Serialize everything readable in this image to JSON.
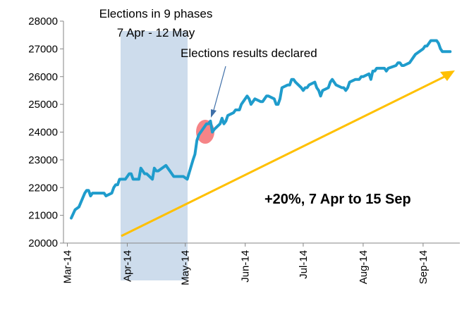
{
  "chart_data": {
    "type": "line",
    "title": "",
    "xlabel": "",
    "ylabel": "",
    "ylim": [
      20000,
      28000
    ],
    "y_ticks": [
      "20000",
      "21000",
      "22000",
      "23000",
      "24000",
      "25000",
      "26000",
      "27000",
      "28000"
    ],
    "x_ticks": [
      "Mar-14",
      "Apr-14",
      "May-14",
      "Jun-14",
      "Jul-14",
      "Aug-14",
      "Sep-14"
    ],
    "grid": false,
    "colors": {
      "series": "#1f9ccc",
      "trend": "#ffc000",
      "shade": "#cddcec",
      "highlight": "#f4777a",
      "pointer": "#3f6fa8"
    },
    "series": [
      {
        "x": [
          "2014-03-03",
          "2014-03-05",
          "2014-03-07",
          "2014-03-10",
          "2014-03-11",
          "2014-03-12",
          "2014-03-13",
          "2014-03-14",
          "2014-03-17",
          "2014-03-18",
          "2014-03-19",
          "2014-03-20",
          "2014-03-21",
          "2014-03-24",
          "2014-03-25",
          "2014-03-26",
          "2014-03-27",
          "2014-03-28",
          "2014-03-31",
          "2014-04-01",
          "2014-04-02",
          "2014-04-03",
          "2014-04-04",
          "2014-04-07",
          "2014-04-08",
          "2014-04-09",
          "2014-04-10",
          "2014-04-11",
          "2014-04-14",
          "2014-04-15",
          "2014-04-16",
          "2014-04-17",
          "2014-04-21",
          "2014-04-22",
          "2014-04-23",
          "2014-04-25",
          "2014-04-28",
          "2014-04-29",
          "2014-04-30",
          "2014-05-02",
          "2014-05-05",
          "2014-05-06",
          "2014-05-07",
          "2014-05-08",
          "2014-05-09",
          "2014-05-12",
          "2014-05-13",
          "2014-05-14",
          "2014-05-15",
          "2014-05-16",
          "2014-05-19",
          "2014-05-20",
          "2014-05-21",
          "2014-05-22",
          "2014-05-23",
          "2014-05-26",
          "2014-05-27",
          "2014-05-28",
          "2014-05-29",
          "2014-05-30",
          "2014-06-02",
          "2014-06-03",
          "2014-06-04",
          "2014-06-05",
          "2014-06-06",
          "2014-06-09",
          "2014-06-10",
          "2014-06-11",
          "2014-06-12",
          "2014-06-13",
          "2014-06-16",
          "2014-06-17",
          "2014-06-18",
          "2014-06-19",
          "2014-06-20",
          "2014-06-23",
          "2014-06-24",
          "2014-06-25",
          "2014-06-26",
          "2014-06-27",
          "2014-06-30",
          "2014-07-01",
          "2014-07-02",
          "2014-07-03",
          "2014-07-04",
          "2014-07-07",
          "2014-07-08",
          "2014-07-09",
          "2014-07-10",
          "2014-07-11",
          "2014-07-14",
          "2014-07-15",
          "2014-07-16",
          "2014-07-17",
          "2014-07-18",
          "2014-07-21",
          "2014-07-22",
          "2014-07-23",
          "2014-07-24",
          "2014-07-25",
          "2014-07-28",
          "2014-07-30",
          "2014-07-31",
          "2014-08-01",
          "2014-08-04",
          "2014-08-05",
          "2014-08-06",
          "2014-08-07",
          "2014-08-08",
          "2014-08-11",
          "2014-08-12",
          "2014-08-13",
          "2014-08-14",
          "2014-08-18",
          "2014-08-19",
          "2014-08-20",
          "2014-08-21",
          "2014-08-22",
          "2014-08-25",
          "2014-08-26",
          "2014-08-27",
          "2014-08-28",
          "2014-09-01",
          "2014-09-02",
          "2014-09-03",
          "2014-09-04",
          "2014-09-05",
          "2014-09-08",
          "2014-09-09",
          "2014-09-10",
          "2014-09-11",
          "2014-09-12",
          "2014-09-15"
        ],
        "values": [
          20900,
          21200,
          21300,
          21800,
          21900,
          21900,
          21700,
          21800,
          21800,
          21800,
          21800,
          21800,
          21700,
          21800,
          22000,
          22100,
          22100,
          22300,
          22300,
          22400,
          22500,
          22500,
          22300,
          22300,
          22700,
          22600,
          22500,
          22500,
          22300,
          22700,
          22600,
          22600,
          22800,
          22700,
          22600,
          22400,
          22400,
          22400,
          22400,
          22300,
          23000,
          23200,
          23700,
          23900,
          24000,
          24300,
          24300,
          24400,
          24000,
          24100,
          24300,
          24500,
          24300,
          24400,
          24600,
          24700,
          24800,
          24800,
          24800,
          25000,
          25300,
          25200,
          25000,
          25100,
          25200,
          25100,
          25100,
          25200,
          25300,
          25300,
          25200,
          25000,
          25000,
          25200,
          25600,
          25700,
          25700,
          25900,
          25900,
          25800,
          25600,
          25500,
          25600,
          25600,
          25700,
          25800,
          25600,
          25500,
          25300,
          25500,
          25600,
          25800,
          25900,
          25800,
          25700,
          25600,
          25600,
          25500,
          25600,
          25800,
          25900,
          25900,
          26000,
          26000,
          26100,
          25900,
          26200,
          26200,
          26300,
          26300,
          26300,
          26200,
          26300,
          26400,
          26500,
          26500,
          26400,
          26400,
          26500,
          26600,
          26700,
          26800,
          27000,
          27100,
          27100,
          27200,
          27300,
          27300,
          27200,
          27000,
          26900,
          26900,
          26900
        ]
      }
    ],
    "annotations": {
      "shade_label_1": "Elections in 9 phases",
      "shade_label_2": "7 Apr - 12 May",
      "results_label": "Elections results declared",
      "trend_label": "+20%, 7 Apr to 15 Sep"
    }
  }
}
